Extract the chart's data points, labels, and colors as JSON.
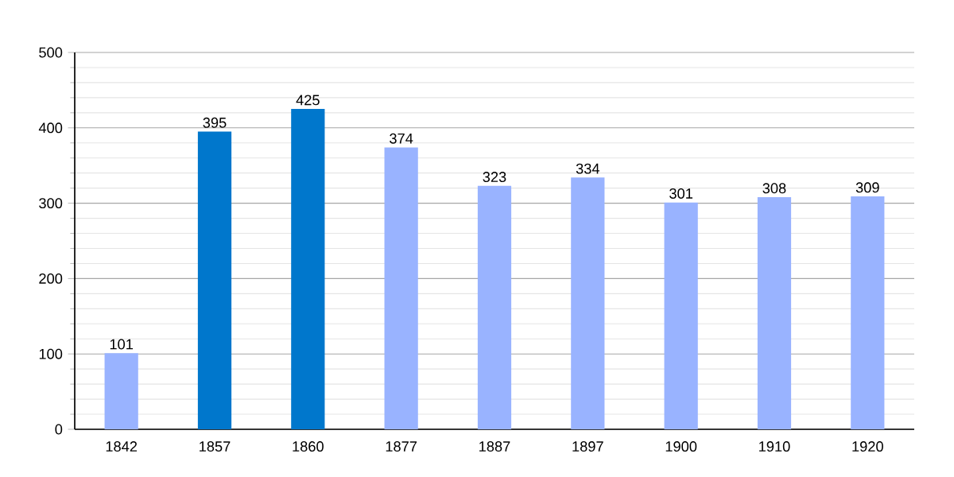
{
  "chart_data": {
    "type": "bar",
    "categories": [
      "1842",
      "1857",
      "1860",
      "1877",
      "1887",
      "1897",
      "1900",
      "1910",
      "1920"
    ],
    "values": [
      101,
      395,
      425,
      374,
      323,
      334,
      301,
      308,
      309
    ],
    "colors": [
      "#99b3ff",
      "#0077cc",
      "#0077cc",
      "#99b3ff",
      "#99b3ff",
      "#99b3ff",
      "#99b3ff",
      "#99b3ff",
      "#99b3ff"
    ],
    "ylim": [
      0,
      500
    ],
    "yticks": [
      0,
      {
        "value": 20,
        "label": null
      },
      {
        "value": 40,
        "label": null
      },
      {
        "value": 60,
        "label": null
      },
      {
        "value": 80,
        "label": null
      },
      100,
      {
        "value": 120,
        "label": null
      },
      {
        "value": 140,
        "label": null
      },
      {
        "value": 160,
        "label": null
      },
      {
        "value": 180,
        "label": null
      },
      200,
      {
        "value": 220,
        "label": null
      },
      {
        "value": 240,
        "label": null
      },
      {
        "value": 260,
        "label": null
      },
      {
        "value": 280,
        "label": null
      },
      300,
      {
        "value": 320,
        "label": null
      },
      {
        "value": 340,
        "label": null
      },
      {
        "value": 360,
        "label": null
      },
      {
        "value": 380,
        "label": null
      },
      400,
      {
        "value": 420,
        "label": null
      },
      {
        "value": 440,
        "label": null
      },
      {
        "value": 460,
        "label": null
      },
      {
        "value": 480,
        "label": null
      },
      500
    ],
    "grid": "y",
    "data_labels": true
  }
}
